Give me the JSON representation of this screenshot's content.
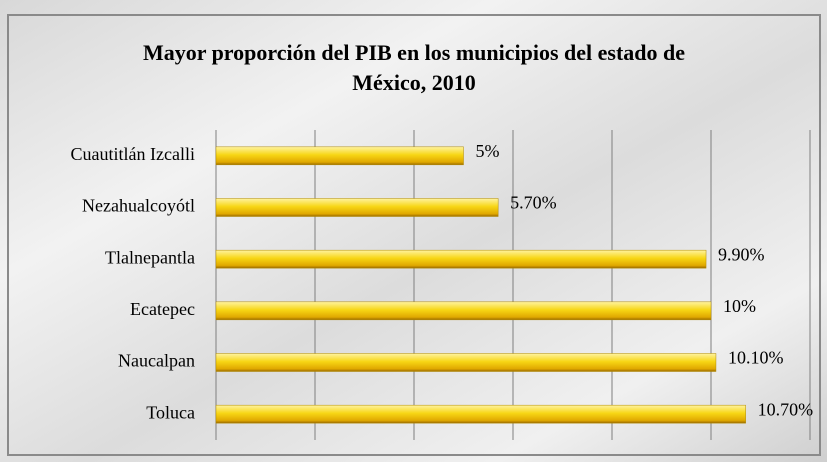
{
  "chart_data": {
    "type": "bar",
    "orientation": "horizontal",
    "title": "Mayor proporción del PIB en los municipios del estado de México, 2010",
    "categories": [
      "Cuautitlán Izcalli",
      "Nezahualcoyótl",
      "Tlalnepantla",
      "Ecatepec",
      "Naucalpan",
      "Toluca"
    ],
    "values": [
      5,
      5.7,
      9.9,
      10,
      10.1,
      10.7
    ],
    "value_labels": [
      "5%",
      "5.70%",
      "9.90%",
      "10%",
      "10.10%",
      "10.70%"
    ],
    "color": "#f5d20a",
    "xlim": [
      0,
      12
    ],
    "xticks": [
      0,
      2,
      4,
      6,
      8,
      10,
      12
    ],
    "grid": true
  }
}
